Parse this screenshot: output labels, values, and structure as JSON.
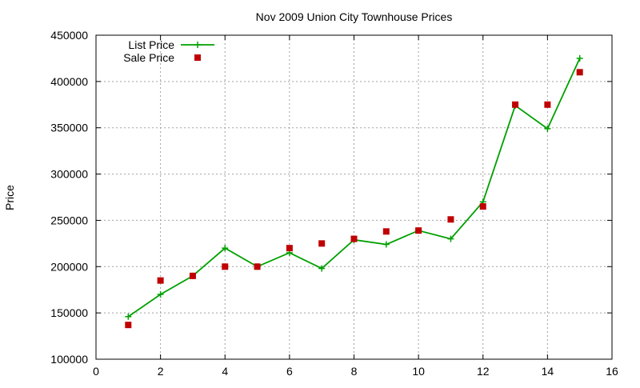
{
  "chart_data": {
    "type": "line",
    "title": "Nov 2009 Union City Townhouse Prices",
    "xlabel": "",
    "ylabel": "Price",
    "xlim": [
      0,
      16
    ],
    "ylim": [
      100000,
      450000
    ],
    "x_ticks": [
      0,
      2,
      4,
      6,
      8,
      10,
      12,
      14,
      16
    ],
    "y_ticks": [
      100000,
      150000,
      200000,
      250000,
      300000,
      350000,
      400000,
      450000
    ],
    "grid": true,
    "legend_position": "top-left",
    "x": [
      1,
      2,
      3,
      4,
      5,
      6,
      7,
      8,
      9,
      10,
      11,
      12,
      13,
      14,
      15
    ],
    "series": [
      {
        "name": "List Price",
        "style": "lines-points",
        "marker": "plus",
        "color": "#00a000",
        "values": [
          146000,
          170000,
          190000,
          220000,
          200000,
          215000,
          198000,
          229000,
          224000,
          239000,
          230000,
          270000,
          374000,
          349000,
          425000
        ]
      },
      {
        "name": "Sale Price",
        "style": "points",
        "marker": "square",
        "color": "#c00000",
        "values": [
          137000,
          185000,
          190000,
          200000,
          200000,
          220000,
          225000,
          230000,
          238000,
          239000,
          251000,
          265000,
          375000,
          375000,
          410000
        ]
      }
    ]
  }
}
